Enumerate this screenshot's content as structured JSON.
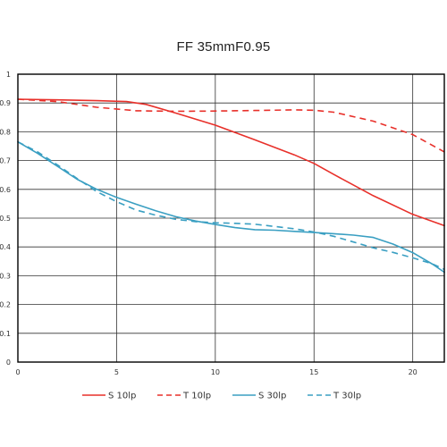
{
  "chart_data": {
    "type": "line",
    "title": "FF 35mmF0.95",
    "xlabel": "",
    "ylabel": "",
    "xlim": [
      0,
      21.6
    ],
    "ylim": [
      0,
      1
    ],
    "x_ticks": [
      0,
      5,
      10,
      15,
      20
    ],
    "x_tick_labels": [
      "0",
      "5",
      "10",
      "15",
      "20"
    ],
    "y_ticks": [
      0,
      0.1,
      0.2,
      0.3,
      0.4,
      0.5,
      0.6,
      0.7,
      0.8,
      0.9,
      1
    ],
    "y_tick_labels": [
      "0",
      "0.1",
      "0.2",
      "0.3",
      "0.4",
      "0.5",
      "0.6",
      "0.7",
      "0.8",
      "0.9",
      "1"
    ],
    "grid": true,
    "legend_position": "bottom-center",
    "series": [
      {
        "name": "S 10lp",
        "color": "#e8302a",
        "dash": "solid",
        "points": [
          [
            0,
            0.913
          ],
          [
            2,
            0.911
          ],
          [
            4,
            0.908
          ],
          [
            5.5,
            0.905
          ],
          [
            6.5,
            0.895
          ],
          [
            8,
            0.865
          ],
          [
            10,
            0.823
          ],
          [
            12,
            0.772
          ],
          [
            14,
            0.72
          ],
          [
            15,
            0.69
          ],
          [
            16,
            0.652
          ],
          [
            18,
            0.578
          ],
          [
            20,
            0.513
          ],
          [
            21.6,
            0.474
          ]
        ]
      },
      {
        "name": "T 10lp",
        "color": "#e8302a",
        "dash": "dashed",
        "points": [
          [
            0,
            0.913
          ],
          [
            2,
            0.905
          ],
          [
            4,
            0.885
          ],
          [
            6,
            0.873
          ],
          [
            8,
            0.871
          ],
          [
            10,
            0.872
          ],
          [
            12,
            0.874
          ],
          [
            14,
            0.876
          ],
          [
            15,
            0.875
          ],
          [
            16,
            0.868
          ],
          [
            18,
            0.837
          ],
          [
            20,
            0.79
          ],
          [
            21.6,
            0.73
          ]
        ]
      },
      {
        "name": "S 30lp",
        "color": "#3a9fc2",
        "dash": "solid",
        "points": [
          [
            0,
            0.765
          ],
          [
            1,
            0.725
          ],
          [
            2,
            0.68
          ],
          [
            3,
            0.635
          ],
          [
            4,
            0.6
          ],
          [
            5,
            0.572
          ],
          [
            6,
            0.548
          ],
          [
            7,
            0.525
          ],
          [
            8,
            0.505
          ],
          [
            9,
            0.49
          ],
          [
            10,
            0.478
          ],
          [
            11,
            0.467
          ],
          [
            12,
            0.46
          ],
          [
            13,
            0.458
          ],
          [
            14,
            0.454
          ],
          [
            15,
            0.45
          ],
          [
            16,
            0.446
          ],
          [
            17,
            0.441
          ],
          [
            18,
            0.433
          ],
          [
            19,
            0.41
          ],
          [
            20,
            0.38
          ],
          [
            21,
            0.34
          ],
          [
            21.6,
            0.312
          ]
        ]
      },
      {
        "name": "T 30lp",
        "color": "#3a9fc2",
        "dash": "dashed",
        "points": [
          [
            0,
            0.765
          ],
          [
            1,
            0.73
          ],
          [
            2,
            0.685
          ],
          [
            3,
            0.638
          ],
          [
            4,
            0.592
          ],
          [
            5,
            0.557
          ],
          [
            6,
            0.528
          ],
          [
            7,
            0.51
          ],
          [
            8,
            0.496
          ],
          [
            9,
            0.488
          ],
          [
            10,
            0.484
          ],
          [
            11,
            0.482
          ],
          [
            12,
            0.479
          ],
          [
            13,
            0.471
          ],
          [
            14,
            0.463
          ],
          [
            15,
            0.452
          ],
          [
            16,
            0.437
          ],
          [
            17,
            0.417
          ],
          [
            18,
            0.397
          ],
          [
            19,
            0.381
          ],
          [
            20,
            0.362
          ],
          [
            21,
            0.341
          ],
          [
            21.6,
            0.322
          ]
        ]
      }
    ]
  }
}
